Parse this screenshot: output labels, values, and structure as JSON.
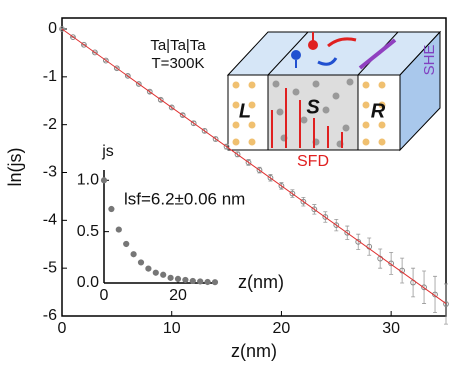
{
  "chart_data": [
    {
      "type": "scatter",
      "xlabel": "z(nm)",
      "ylabel": "ln(js)",
      "x": [
        0,
        1,
        2,
        3,
        4,
        5,
        6,
        7,
        8,
        9,
        10,
        11,
        12,
        13,
        14,
        15,
        16,
        17,
        18,
        19,
        20,
        21,
        22,
        23,
        24,
        25,
        26,
        27,
        28,
        29,
        30,
        31,
        32,
        33,
        34,
        35
      ],
      "series": [
        {
          "color": "#888888",
          "values": [
            0,
            -0.17,
            -0.33,
            -0.49,
            -0.66,
            -0.82,
            -0.98,
            -1.15,
            -1.31,
            -1.48,
            -1.64,
            -1.8,
            -1.97,
            -2.13,
            -2.3,
            -2.46,
            -2.62,
            -2.79,
            -2.95,
            -3.11,
            -3.28,
            -3.44,
            -3.61,
            -3.77,
            -3.93,
            -4.1,
            -4.26,
            -4.45,
            -4.55,
            -4.8,
            -4.9,
            -5.05,
            -5.3,
            -5.4,
            -5.55,
            -5.75
          ],
          "errors": [
            0.01,
            0.01,
            0.01,
            0.01,
            0.02,
            0.02,
            0.02,
            0.02,
            0.03,
            0.03,
            0.03,
            0.03,
            0.04,
            0.04,
            0.04,
            0.05,
            0.05,
            0.06,
            0.06,
            0.07,
            0.07,
            0.08,
            0.09,
            0.1,
            0.11,
            0.12,
            0.14,
            0.16,
            0.18,
            0.2,
            0.23,
            0.26,
            0.3,
            0.34,
            0.38,
            0.42
          ]
        },
        {
          "type": "line",
          "color": "#e03030",
          "x": [
            0,
            35
          ],
          "values": [
            0,
            -5.74
          ]
        }
      ],
      "xlim": [
        0,
        35
      ],
      "xticks": [
        0,
        10,
        20,
        30
      ],
      "ylim": [
        -6,
        0.23
      ],
      "yticks": [
        0,
        -1,
        -2,
        -3,
        -4,
        -5,
        -6
      ]
    },
    {
      "type": "scatter",
      "xlabel": "z(nm)",
      "ylabel": "js",
      "annotation": "lsf=6.2±0.06 nm",
      "x": [
        0,
        2,
        4,
        6,
        8,
        10,
        12,
        14,
        16,
        18,
        20,
        22,
        24,
        26,
        28,
        30
      ],
      "series": [
        {
          "color": "#777777",
          "values": [
            1.0,
            0.72,
            0.52,
            0.38,
            0.28,
            0.2,
            0.14,
            0.1,
            0.08,
            0.05,
            0.04,
            0.03,
            0.02,
            0.015,
            0.01,
            0.008
          ]
        }
      ],
      "xlim": [
        0,
        30
      ],
      "xticks": [
        0,
        20
      ],
      "ylim": [
        0,
        1.1
      ],
      "yticks": [
        {
          "value": 0,
          "label": "0.0"
        },
        {
          "value": 0.5,
          "label": "0.5"
        },
        {
          "value": 1,
          "label": "1.0"
        }
      ]
    }
  ],
  "schematic": {
    "material": "Ta|Ta|Ta",
    "temperature": "T=300K",
    "left": "L",
    "center": "S",
    "right": "R",
    "sfd": "SFD",
    "she": "SHE"
  }
}
